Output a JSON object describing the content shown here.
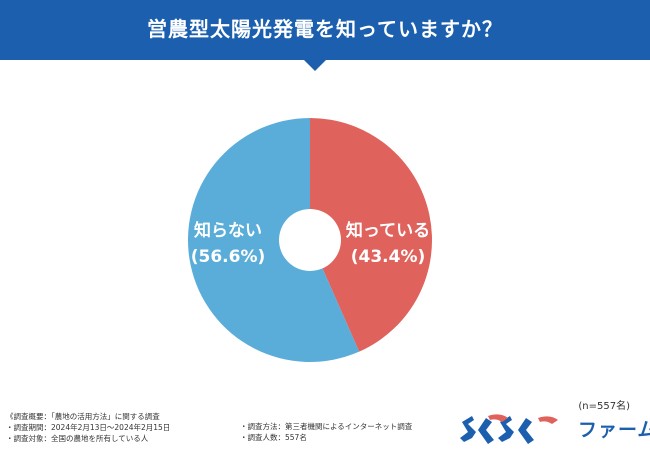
{
  "header": {
    "title": "営農型太陽光発電を知っていますか？",
    "background": "#1b5fae"
  },
  "chart_data": {
    "type": "pie",
    "donut": true,
    "start": "top",
    "direction": "clockwise",
    "slices": [
      {
        "label": "知っている",
        "value": 43.4,
        "value_label": "(43.4%)",
        "color": "#e0625c"
      },
      {
        "label": "知らない",
        "value": 56.6,
        "value_label": "(56.6%)",
        "color": "#5aadd9"
      }
    ],
    "n_label": "(n=557名)"
  },
  "footnotes": {
    "left": [
      "《調査概要：「農地の活用方法」に関する調査",
      "・調査期間：2024年2月13日〜2024年2月15日",
      "・調査対象：全国の農地を所有している人"
    ],
    "right": [
      "・調査方法：第三者機関によるインターネット調査",
      "・調査人数：557名"
    ]
  },
  "logo": {
    "text": "とくとくファーム",
    "color": "#1b5fae",
    "accent_color": "#e0625c"
  }
}
